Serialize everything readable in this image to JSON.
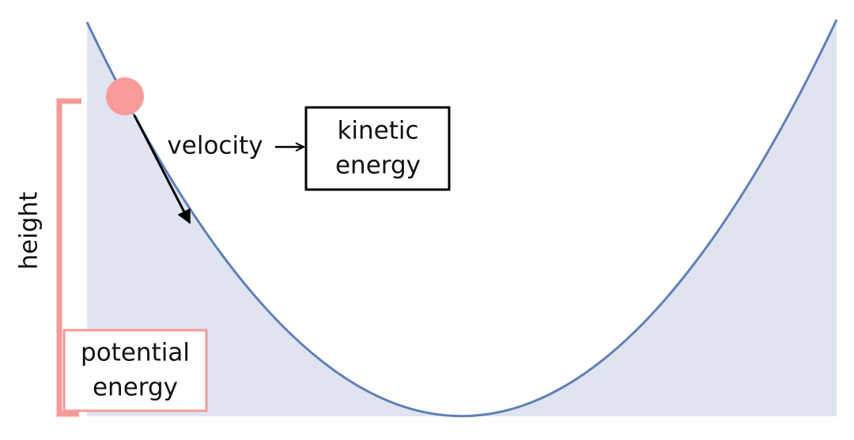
{
  "labels": {
    "height": "height",
    "velocity": "velocity",
    "kinetic_energy": [
      "kinetic",
      "energy"
    ],
    "potential_energy": [
      "potential",
      "energy"
    ]
  }
}
